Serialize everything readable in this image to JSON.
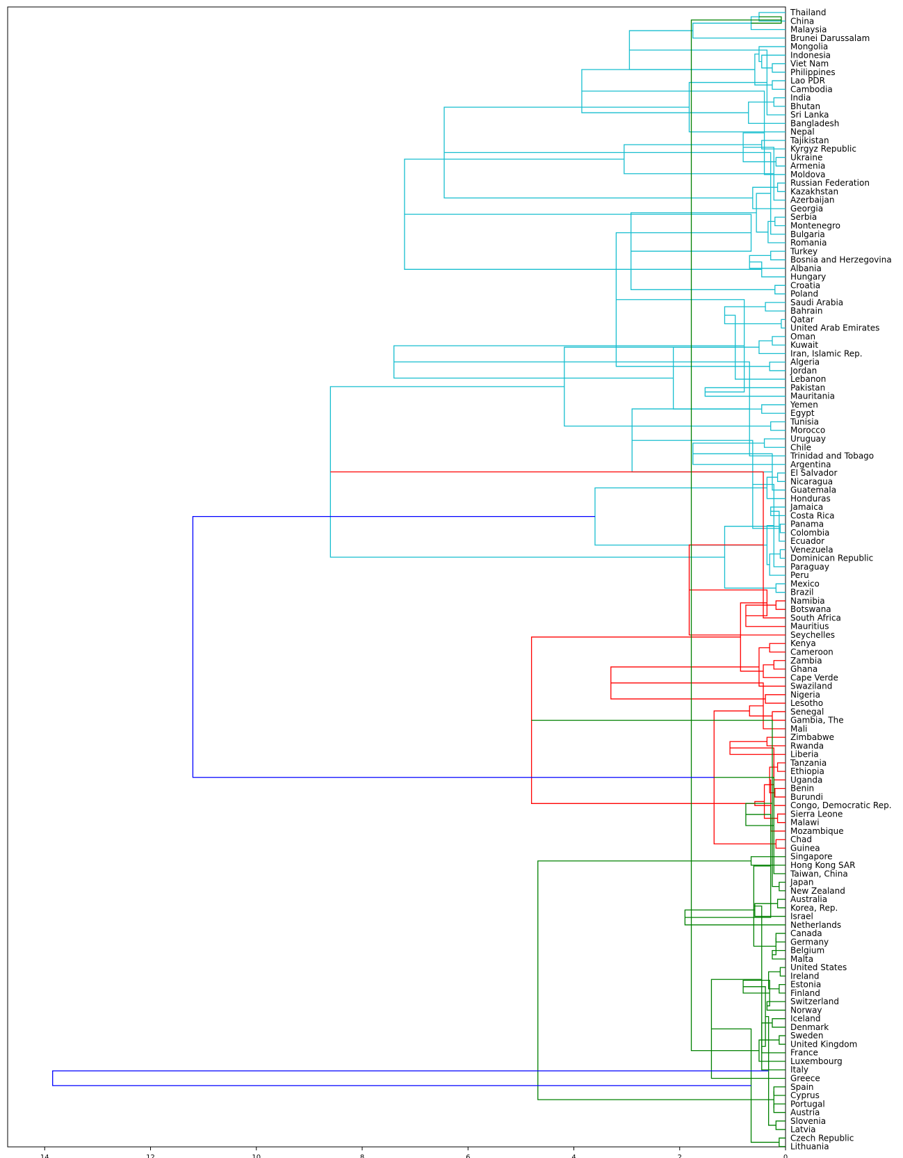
{
  "chart_data": {
    "type": "dendrogram",
    "orientation": "left",
    "xlim": [
      14.7,
      0
    ],
    "x_ticks": [
      14,
      12,
      10,
      8,
      6,
      4,
      2,
      0
    ],
    "x_tick_labels": [
      "14",
      "12",
      "10",
      "8",
      "6",
      "4",
      "2",
      "0"
    ],
    "grid": false,
    "cluster_colors": {
      "cyan": "#17BECF",
      "red": "#FF0000",
      "green": "#008000",
      "blue": "#0000FF"
    },
    "leaves": [
      "Thailand",
      "China",
      "Malaysia",
      "Brunei Darussalam",
      "Mongolia",
      "Indonesia",
      "Viet Nam",
      "Philippines",
      "Lao PDR",
      "Cambodia",
      "India",
      "Bhutan",
      "Sri Lanka",
      "Bangladesh",
      "Nepal",
      "Tajikistan",
      "Kyrgyz Republic",
      "Ukraine",
      "Armenia",
      "Moldova",
      "Russian Federation",
      "Kazakhstan",
      "Azerbaijan",
      "Georgia",
      "Serbia",
      "Montenegro",
      "Bulgaria",
      "Romania",
      "Turkey",
      "Bosnia and Herzegovina",
      "Albania",
      "Hungary",
      "Croatia",
      "Poland",
      "Saudi Arabia",
      "Bahrain",
      "Qatar",
      "United Arab Emirates",
      "Oman",
      "Kuwait",
      "Iran, Islamic Rep.",
      "Algeria",
      "Jordan",
      "Lebanon",
      "Pakistan",
      "Mauritania",
      "Yemen",
      "Egypt",
      "Tunisia",
      "Morocco",
      "Uruguay",
      "Chile",
      "Trinidad and Tobago",
      "Argentina",
      "El Salvador",
      "Nicaragua",
      "Guatemala",
      "Honduras",
      "Jamaica",
      "Costa Rica",
      "Panama",
      "Colombia",
      "Ecuador",
      "Venezuela",
      "Dominican Republic",
      "Paraguay",
      "Peru",
      "Mexico",
      "Brazil",
      "Namibia",
      "Botswana",
      "South Africa",
      "Mauritius",
      "Seychelles",
      "Kenya",
      "Cameroon",
      "Zambia",
      "Ghana",
      "Cape Verde",
      "Swaziland",
      "Nigeria",
      "Lesotho",
      "Senegal",
      "Gambia, The",
      "Mali",
      "Zimbabwe",
      "Rwanda",
      "Liberia",
      "Tanzania",
      "Ethiopia",
      "Uganda",
      "Benin",
      "Burundi",
      "Congo, Democratic Rep.",
      "Sierra Leone",
      "Malawi",
      "Mozambique",
      "Chad",
      "Guinea",
      "Singapore",
      "Hong Kong SAR",
      "Taiwan, China",
      "Japan",
      "New Zealand",
      "Australia",
      "Korea, Rep.",
      "Israel",
      "Netherlands",
      "Canada",
      "Germany",
      "Belgium",
      "Malta",
      "United States",
      "Ireland",
      "Estonia",
      "Finland",
      "Switzerland",
      "Norway",
      "Iceland",
      "Denmark",
      "Sweden",
      "United Kingdom",
      "France",
      "Luxembourg",
      "Italy",
      "Greece",
      "Spain",
      "Cyprus",
      "Portugal",
      "Austria",
      "Slovenia",
      "Latvia",
      "Czech Republic",
      "Lithuania"
    ],
    "merges": [
      [
        0,
        1,
        0.5,
        "cyan"
      ],
      [
        134,
        2,
        0.65,
        "cyan"
      ],
      [
        135,
        3,
        1.75,
        "cyan"
      ],
      [
        6,
        7,
        0.25,
        "cyan"
      ],
      [
        5,
        137,
        0.45,
        "cyan"
      ],
      [
        4,
        138,
        0.5,
        "cyan"
      ],
      [
        8,
        9,
        0.25,
        "cyan"
      ],
      [
        139,
        140,
        0.58,
        "cyan"
      ],
      [
        136,
        141,
        2.95,
        "cyan"
      ],
      [
        10,
        11,
        0.22,
        "cyan"
      ],
      [
        142,
        12,
        0.35,
        "cyan"
      ],
      [
        143,
        13,
        0.7,
        "cyan"
      ],
      [
        144,
        14,
        1.82,
        "cyan"
      ],
      [
        141,
        145,
        3.85,
        "cyan"
      ],
      [
        17,
        18,
        0.18,
        "cyan"
      ],
      [
        147,
        19,
        0.4,
        "cyan"
      ],
      [
        15,
        16,
        0.45,
        "cyan"
      ],
      [
        149,
        148,
        0.8,
        "cyan"
      ],
      [
        20,
        21,
        0.15,
        "cyan"
      ],
      [
        151,
        22,
        0.22,
        "cyan"
      ],
      [
        152,
        23,
        0.62,
        "cyan"
      ],
      [
        150,
        153,
        3.05,
        "cyan"
      ],
      [
        146,
        154,
        6.45,
        "cyan"
      ],
      [
        24,
        25,
        0.2,
        "cyan"
      ],
      [
        156,
        26,
        0.28,
        "cyan"
      ],
      [
        157,
        27,
        0.33,
        "cyan"
      ],
      [
        28,
        29,
        0.28,
        "cyan"
      ],
      [
        158,
        159,
        0.55,
        "cyan"
      ],
      [
        160,
        30,
        0.68,
        "cyan"
      ],
      [
        32,
        33,
        0.2,
        "cyan"
      ],
      [
        31,
        162,
        0.45,
        "cyan"
      ],
      [
        161,
        163,
        2.92,
        "cyan"
      ],
      [
        155,
        164,
        7.2,
        "cyan"
      ],
      [
        36,
        37,
        0.08,
        "cyan"
      ],
      [
        34,
        35,
        0.38,
        "cyan"
      ],
      [
        166,
        165,
        0.65,
        "cyan"
      ],
      [
        38,
        39,
        0.25,
        "cyan"
      ],
      [
        167,
        168,
        1.15,
        "cyan"
      ],
      [
        41,
        42,
        0.3,
        "cyan"
      ],
      [
        40,
        170,
        0.5,
        "cyan"
      ],
      [
        171,
        43,
        0.95,
        "cyan"
      ],
      [
        169,
        172,
        3.2,
        "cyan"
      ],
      [
        44,
        45,
        1.52,
        "cyan"
      ],
      [
        46,
        47,
        0.45,
        "cyan"
      ],
      [
        48,
        49,
        0.28,
        "cyan"
      ],
      [
        175,
        176,
        0.78,
        "cyan"
      ],
      [
        174,
        177,
        2.12,
        "cyan"
      ],
      [
        173,
        178,
        4.18,
        "cyan"
      ],
      [
        179,
        180,
        7.4,
        "cyan"
      ],
      [
        50,
        51,
        0.4,
        "cyan"
      ],
      [
        182,
        52,
        0.68,
        "cyan"
      ],
      [
        183,
        53,
        1.75,
        "cyan"
      ],
      [
        54,
        55,
        0.15,
        "cyan"
      ],
      [
        185,
        56,
        0.25,
        "cyan"
      ],
      [
        186,
        57,
        0.35,
        "cyan"
      ],
      [
        184,
        187,
        2.9,
        "cyan"
      ],
      [
        58,
        59,
        0.28,
        "cyan"
      ],
      [
        60,
        61,
        0.1,
        "cyan"
      ],
      [
        190,
        62,
        0.12,
        "cyan"
      ],
      [
        189,
        191,
        0.62,
        "cyan"
      ],
      [
        63,
        64,
        0.1,
        "cyan"
      ],
      [
        193,
        65,
        0.22,
        "cyan"
      ],
      [
        194,
        66,
        0.3,
        "cyan"
      ],
      [
        67,
        68,
        0.18,
        "cyan"
      ],
      [
        195,
        196,
        0.35,
        "cyan"
      ],
      [
        192,
        197,
        1.15,
        "cyan"
      ],
      [
        188,
        198,
        3.6,
        "cyan"
      ],
      [
        181,
        199,
        8.6,
        "cyan"
      ],
      [
        69,
        70,
        0.18,
        "red"
      ],
      [
        201,
        71,
        0.42,
        "red"
      ],
      [
        202,
        72,
        0.75,
        "red"
      ],
      [
        203,
        73,
        1.82,
        "red"
      ],
      [
        76,
        77,
        0.22,
        "red"
      ],
      [
        74,
        75,
        0.3,
        "red"
      ],
      [
        205,
        204,
        0.35,
        "red"
      ],
      [
        206,
        78,
        0.42,
        "red"
      ],
      [
        207,
        79,
        0.5,
        "red"
      ],
      [
        80,
        81,
        0.38,
        "red"
      ],
      [
        208,
        209,
        0.85,
        "red"
      ],
      [
        210,
        211,
        3.3,
        "red"
      ],
      [
        82,
        83,
        0.25,
        "red"
      ],
      [
        213,
        84,
        0.42,
        "red"
      ],
      [
        85,
        86,
        0.35,
        "red"
      ],
      [
        214,
        215,
        0.68,
        "red"
      ],
      [
        216,
        87,
        1.05,
        "red"
      ],
      [
        88,
        89,
        0.15,
        "red"
      ],
      [
        218,
        90,
        0.22,
        "red"
      ],
      [
        91,
        92,
        0.2,
        "red"
      ],
      [
        93,
        220,
        0.22,
        "red"
      ],
      [
        219,
        221,
        0.3,
        "red"
      ],
      [
        94,
        95,
        0.15,
        "red"
      ],
      [
        223,
        96,
        0.28,
        "red"
      ],
      [
        222,
        224,
        0.4,
        "red"
      ],
      [
        97,
        98,
        0.18,
        "red"
      ],
      [
        225,
        226,
        0.58,
        "red"
      ],
      [
        217,
        227,
        1.35,
        "red"
      ],
      [
        212,
        228,
        4.8,
        "red"
      ],
      [
        102,
        103,
        0.12,
        "green"
      ],
      [
        104,
        105,
        0.15,
        "green"
      ],
      [
        101,
        229,
        0.22,
        "green"
      ],
      [
        230,
        231,
        0.25,
        "green"
      ],
      [
        232,
        106,
        0.58,
        "green"
      ],
      [
        99,
        100,
        0.65,
        "green"
      ],
      [
        234,
        233,
        0.75,
        "green"
      ],
      [
        235,
        107,
        1.9,
        "green"
      ],
      [
        108,
        109,
        0.18,
        "green"
      ],
      [
        110,
        111,
        0.25,
        "green"
      ],
      [
        112,
        113,
        0.1,
        "green"
      ],
      [
        114,
        115,
        0.12,
        "green"
      ],
      [
        239,
        240,
        0.18,
        "green"
      ],
      [
        237,
        238,
        0.28,
        "green"
      ],
      [
        242,
        241,
        0.32,
        "green"
      ],
      [
        116,
        117,
        0.35,
        "green"
      ],
      [
        243,
        244,
        0.6,
        "green"
      ],
      [
        120,
        121,
        0.12,
        "green"
      ],
      [
        118,
        119,
        0.25,
        "green"
      ],
      [
        246,
        245,
        0.3,
        "green"
      ],
      [
        247,
        122,
        0.45,
        "green"
      ],
      [
        248,
        123,
        0.5,
        "green"
      ],
      [
        249,
        124,
        0.45,
        "green"
      ],
      [
        245,
        250,
        0.8,
        "green"
      ],
      [
        251,
        125,
        1.4,
        "green"
      ],
      [
        126,
        127,
        0.22,
        "green"
      ],
      [
        128,
        129,
        0.22,
        "green"
      ],
      [
        253,
        254,
        0.38,
        "green"
      ],
      [
        130,
        131,
        0.18,
        "green"
      ],
      [
        132,
        133,
        0.12,
        "green"
      ],
      [
        134,
        135,
        0.08,
        "green"
      ],
      [
        256,
        257,
        0.22,
        "green"
      ],
      [
        258,
        259,
        0.32,
        "green"
      ],
      [
        255,
        260,
        0.65,
        "green"
      ],
      [
        252,
        261,
        1.78,
        "green"
      ],
      [
        236,
        262,
        4.68,
        "green"
      ],
      [
        200,
        229,
        11.2,
        "blue"
      ],
      [
        263,
        264,
        13.85,
        "blue"
      ]
    ]
  }
}
